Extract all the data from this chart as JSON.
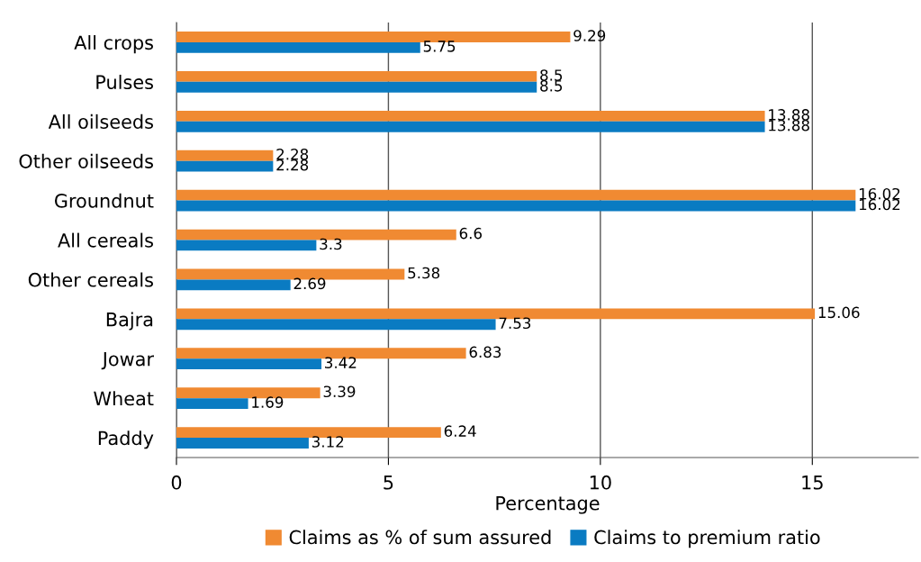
{
  "chart_data": {
    "type": "bar",
    "orientation": "horizontal",
    "xlabel": "Percentage",
    "categories": [
      "All crops",
      "Pulses",
      "All oilseeds",
      "Other oilseeds",
      "Groundnut",
      "All cereals",
      "Other cereals",
      "Bajra",
      "Jowar",
      "Wheat",
      "Paddy"
    ],
    "series": [
      {
        "name": "Claims as % of sum assured",
        "color": "#f08a32",
        "values": [
          9.29,
          8.5,
          13.88,
          2.28,
          16.02,
          6.6,
          5.38,
          15.06,
          6.83,
          3.39,
          6.24
        ]
      },
      {
        "name": "Claims to premium ratio",
        "color": "#0a7bc2",
        "values": [
          5.75,
          8.5,
          13.88,
          2.28,
          16.02,
          3.3,
          2.69,
          7.53,
          3.42,
          1.69,
          3.12
        ]
      }
    ],
    "xlim": [
      0,
      17.5
    ],
    "xticks": [
      0,
      5,
      10,
      15
    ],
    "grid": "x",
    "legend": "bottom",
    "data_labels": true
  }
}
